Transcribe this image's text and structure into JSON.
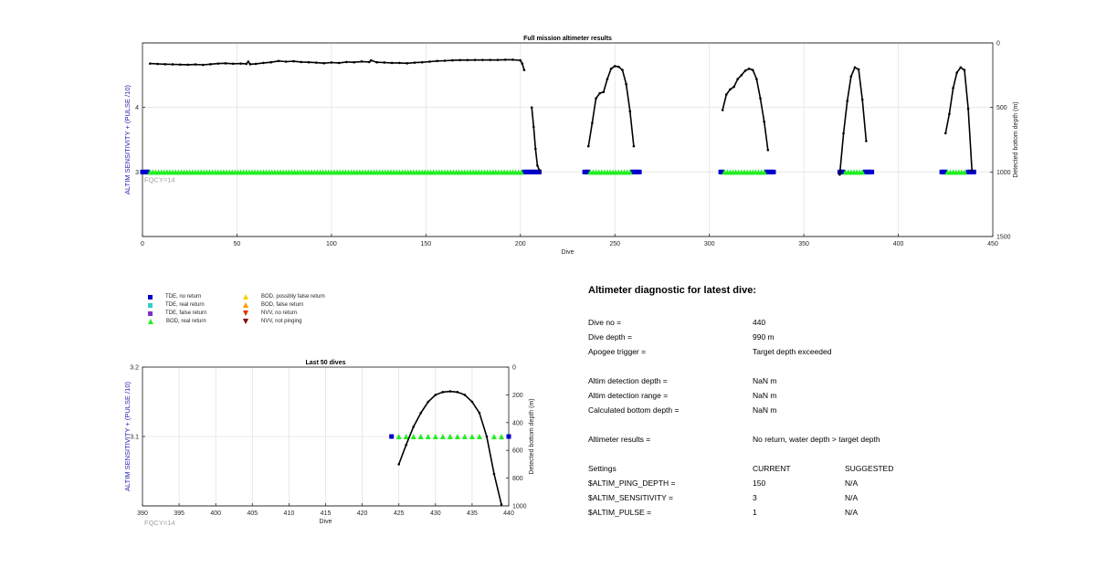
{
  "colors": {
    "tde_no_return": "#0000cc",
    "tde_real_return": "#33cccc",
    "tde_false_return": "#7733cc",
    "bod_real_return": "#22ee22",
    "bod_possibly_false_return": "#ffcc00",
    "bod_false_return": "#ff9900",
    "nvv_no_return": "#dd3300",
    "nvv_not_pinging": "#880000",
    "sensitivity_axis_text": "#2222aa",
    "fqcy_label": "#a0a0a0",
    "trace": "#000000"
  },
  "legend": [
    {
      "label": "TDE, no return",
      "marker": "square",
      "color_key": "tde_no_return"
    },
    {
      "label": "TDE, real return",
      "marker": "square",
      "color_key": "tde_real_return"
    },
    {
      "label": "TDE, false return",
      "marker": "square",
      "color_key": "tde_false_return"
    },
    {
      "label": "BOD, real return",
      "marker": "triangle-up",
      "color_key": "bod_real_return"
    },
    {
      "label": "BOD, possibly false return",
      "marker": "triangle-up",
      "color_key": "bod_possibly_false_return"
    },
    {
      "label": "BOD, false return",
      "marker": "triangle-up",
      "color_key": "bod_false_return"
    },
    {
      "label": "NVV, no return",
      "marker": "triangle-down",
      "color_key": "nvv_no_return"
    },
    {
      "label": "NVV, not pinging",
      "marker": "triangle-down",
      "color_key": "nvv_not_pinging"
    }
  ],
  "chart_data": [
    {
      "type": "scatter",
      "title": "Full mission altimeter results",
      "xlabel": "Dive",
      "ylabel": "ALTIM SENSITIVITY + (PULSE /10)",
      "y2label": "Detected bottom depth (m)",
      "xlim": [
        0,
        450
      ],
      "ylim": [
        2,
        5
      ],
      "y2lim": [
        0,
        1500
      ],
      "y2_reversed": true,
      "xticks": [
        "0",
        "50",
        "100",
        "150",
        "200",
        "250",
        "300",
        "350",
        "400",
        "450"
      ],
      "yticks": [
        "3",
        "4"
      ],
      "y2ticks": [
        "0",
        "500",
        "1000",
        "1500"
      ],
      "grid": true,
      "annotation": "FQCY=14",
      "tde_no_return_segments": [
        [
          0,
          3
        ],
        [
          202,
          210
        ],
        [
          234,
          236
        ],
        [
          259,
          263
        ],
        [
          306,
          307
        ],
        [
          330,
          334
        ],
        [
          369,
          371
        ],
        [
          382,
          386
        ],
        [
          423,
          425
        ],
        [
          437,
          440
        ]
      ],
      "bod_real_return_segments": [
        [
          4,
          201
        ],
        [
          237,
          258
        ],
        [
          308,
          329
        ],
        [
          372,
          381
        ],
        [
          426,
          436
        ]
      ],
      "depth_series": [
        {
          "x": [
            4,
            8,
            12,
            16,
            20,
            24,
            28,
            32,
            36,
            40,
            44,
            48,
            52,
            55,
            56,
            57,
            60,
            64,
            68,
            72,
            76,
            80,
            84,
            88,
            92,
            96,
            100,
            104,
            108,
            112,
            116,
            120,
            121,
            124,
            128,
            132,
            136,
            140,
            144,
            148,
            152,
            156,
            160,
            164,
            168,
            172,
            176,
            180,
            184,
            188,
            192,
            196,
            200,
            201,
            202
          ],
          "y": [
            160,
            163,
            165,
            166,
            168,
            169,
            167,
            170,
            165,
            160,
            158,
            161,
            160,
            162,
            145,
            165,
            162,
            155,
            150,
            140,
            145,
            142,
            148,
            150,
            153,
            157,
            152,
            155,
            148,
            150,
            144,
            148,
            135,
            150,
            152,
            155,
            155,
            158,
            153,
            150,
            145,
            140,
            138,
            135,
            133,
            133,
            132,
            132,
            132,
            132,
            130,
            130,
            135,
            160,
            210
          ]
        },
        {
          "x": [
            206,
            207,
            208,
            209,
            210
          ],
          "y": [
            500,
            650,
            820,
            950,
            985
          ]
        },
        {
          "x": [
            236,
            238,
            240,
            242,
            244,
            246,
            248,
            250,
            252,
            254,
            256,
            258,
            260
          ],
          "y": [
            800,
            620,
            430,
            390,
            380,
            280,
            200,
            180,
            185,
            210,
            320,
            530,
            800
          ]
        },
        {
          "x": [
            307,
            309,
            311,
            313,
            315,
            317,
            319,
            321,
            323,
            325,
            327,
            329,
            331
          ],
          "y": [
            520,
            400,
            360,
            340,
            280,
            250,
            215,
            200,
            210,
            280,
            430,
            610,
            830
          ]
        },
        {
          "x": [
            369,
            371,
            373,
            375,
            377,
            379,
            381,
            383
          ],
          "y": [
            1020,
            700,
            450,
            260,
            190,
            205,
            440,
            760
          ]
        },
        {
          "x": [
            425,
            427,
            429,
            431,
            433,
            435,
            437,
            439
          ],
          "y": [
            700,
            550,
            350,
            230,
            190,
            210,
            510,
            990
          ]
        }
      ]
    },
    {
      "type": "scatter",
      "title": "Last 50 dives",
      "xlabel": "Dive",
      "ylabel": "ALTIM SENSITIVITY + (PULSE /10)",
      "y2label": "Detected bottom depth (m)",
      "xlim": [
        390,
        440
      ],
      "ylim": [
        3,
        3.2
      ],
      "y2lim": [
        0,
        1000
      ],
      "y2_reversed": true,
      "xticks": [
        "390",
        "395",
        "400",
        "405",
        "410",
        "415",
        "420",
        "425",
        "430",
        "435",
        "440"
      ],
      "yticks": [
        "3.1",
        "3.2"
      ],
      "y2ticks": [
        "0",
        "200",
        "400",
        "600",
        "800",
        "1000"
      ],
      "grid": true,
      "annotation": "FQCY=14",
      "tde_no_return_x": [
        424,
        440
      ],
      "bod_real_return_x": [
        425,
        426,
        427,
        428,
        429,
        430,
        431,
        432,
        433,
        434,
        435,
        436,
        438,
        439
      ],
      "marker_y": 3.1,
      "depth_series": [
        {
          "x": [
            425,
            426,
            427,
            428,
            429,
            430,
            431,
            432,
            433,
            434,
            435,
            436,
            437,
            438,
            439
          ],
          "y": [
            700,
            560,
            430,
            330,
            250,
            200,
            180,
            175,
            180,
            200,
            250,
            330,
            500,
            770,
            990
          ]
        }
      ]
    }
  ],
  "diagnostic": {
    "title": "Altimeter diagnostic for latest dive:",
    "rows": [
      {
        "label": "Dive no =",
        "value": "440",
        "suggested": ""
      },
      {
        "label": "Dive depth =",
        "value": "990 m",
        "suggested": ""
      },
      {
        "label": "Apogee trigger =",
        "value": "Target depth exceeded",
        "suggested": ""
      },
      {
        "label": "Altim detection depth =",
        "value": "NaN m",
        "suggested": ""
      },
      {
        "label": "Altim detection range =",
        "value": "NaN m",
        "suggested": ""
      },
      {
        "label": "Calculated bottom depth =",
        "value": "NaN m",
        "suggested": ""
      },
      {
        "label": "Altimeter results =",
        "value": "No return, water depth > target depth",
        "suggested": ""
      },
      {
        "label": "Settings",
        "value": "CURRENT",
        "suggested": "SUGGESTED"
      },
      {
        "label": "$ALTIM_PING_DEPTH =",
        "value": "150",
        "suggested": "N/A"
      },
      {
        "label": "$ALTIM_SENSITIVITY =",
        "value": "3",
        "suggested": "N/A"
      },
      {
        "label": "$ALTIM_PULSE =",
        "value": "1",
        "suggested": "N/A"
      }
    ]
  }
}
